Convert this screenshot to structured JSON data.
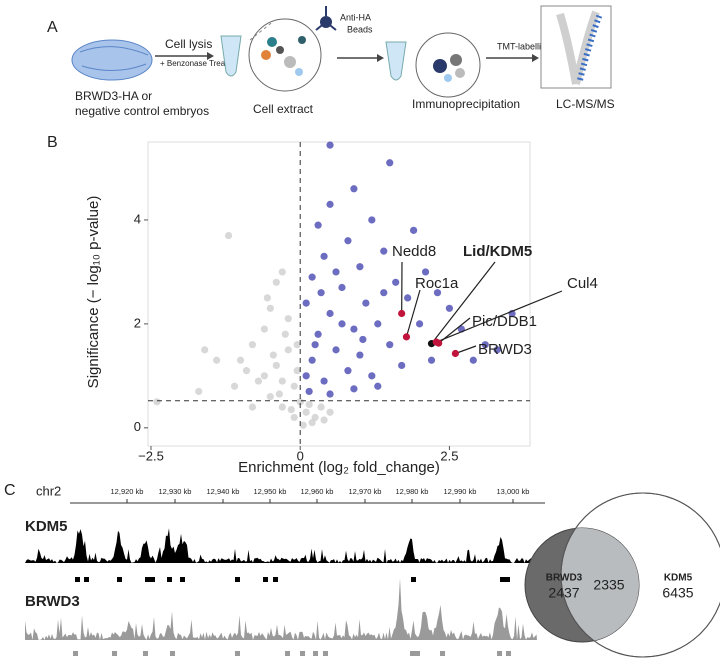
{
  "panel_a": {
    "label": "A",
    "embryo_text": [
      "BRWD3-HA or",
      "negative control embryos"
    ],
    "lysis": "Cell lysis",
    "treatment": "+ Benzonase Treat",
    "extract": "Cell extract",
    "beads": [
      "Anti-HA",
      "Beads"
    ],
    "ip": "Immunoprecipitation",
    "tmt": "TMT-labelling",
    "ms": "LC-MS/MS"
  },
  "panel_b": {
    "label": "B"
  },
  "panel_c": {
    "label": "C",
    "chromosome": "chr2",
    "coords": [
      "12,920 kb",
      "12,930 kb",
      "12,940 kb",
      "12,950 kb",
      "12,960 kb",
      "12,970 kb",
      "12,980 kb",
      "12,990 kb",
      "13,000 kb"
    ],
    "tracks": [
      {
        "name": "KDM5",
        "color": "#000000"
      },
      {
        "name": "BRWD3",
        "color": "#9a9a9a"
      }
    ]
  },
  "chart_data": [
    {
      "type": "scatter",
      "x_label": "Enrichment (log₂ fold_change)",
      "y_label": "Significance (− log₁₀ p-value)",
      "xlim": [
        -2.55,
        3.85
      ],
      "ylim": [
        -0.35,
        5.5
      ],
      "xticks": [
        {
          "value": -2.5,
          "label": "−2.5"
        },
        0,
        2.5
      ],
      "yticks": [
        0,
        2,
        4
      ],
      "grid": false,
      "thresholds": {
        "x": 0,
        "y": 0.52
      },
      "series": [
        {
          "color": "#c8c8c8",
          "x": [
            -1.2,
            -1.6,
            -1.0,
            -0.8,
            -0.6,
            -0.5,
            -0.4,
            -0.3,
            -0.2,
            -0.1,
            0.0,
            0.1,
            0.2,
            -0.1,
            -0.3,
            -0.5,
            -0.7,
            -0.9,
            -1.1,
            -0.4,
            -0.2,
            -0.6,
            -0.15,
            0.05,
            0.25,
            0.35,
            0.5,
            -1.4,
            -1.7,
            -0.25,
            -0.45,
            -0.05,
            -0.35,
            0.15,
            -2.4,
            -0.8,
            -0.55,
            -0.3,
            -0.05,
            0.4
          ],
          "values": [
            3.7,
            1.5,
            1.3,
            1.6,
            1.9,
            2.3,
            1.2,
            0.9,
            1.5,
            0.8,
            0.5,
            0.3,
            0.1,
            0.2,
            0.4,
            0.6,
            0.9,
            1.1,
            0.8,
            2.8,
            2.1,
            1.0,
            0.35,
            0.05,
            0.2,
            0.4,
            0.3,
            1.3,
            0.7,
            1.8,
            1.4,
            1.1,
            0.65,
            0.45,
            0.5,
            0.4,
            2.5,
            3.0,
            1.6,
            0.15
          ]
        },
        {
          "color": "#2e2ea6",
          "x": [
            0.5,
            1.5,
            0.9,
            0.5,
            1.2,
            0.3,
            0.8,
            1.9,
            0.4,
            1.0,
            1.4,
            0.2,
            0.7,
            1.6,
            2.1,
            0.1,
            0.5,
            1.1,
            1.8,
            2.5,
            3.55,
            0.3,
            0.9,
            1.3,
            2.0,
            2.7,
            3.1,
            0.2,
            0.6,
            1.0,
            1.5,
            2.2,
            2.9,
            3.3,
            0.1,
            0.4,
            0.8,
            1.2,
            1.7,
            0.15,
            0.5,
            0.9,
            1.3,
            0.25,
            0.7,
            1.05,
            0.35,
            0.6,
            1.4,
            2.3
          ],
          "values": [
            5.44,
            5.1,
            4.6,
            4.3,
            4.0,
            3.9,
            3.6,
            3.8,
            3.3,
            3.1,
            3.4,
            2.9,
            2.7,
            2.8,
            3.0,
            2.4,
            2.2,
            2.4,
            2.5,
            2.3,
            2.2,
            1.8,
            1.9,
            2.0,
            2.0,
            1.9,
            1.6,
            1.3,
            1.5,
            1.4,
            1.6,
            1.3,
            1.3,
            1.5,
            1.0,
            0.9,
            1.1,
            1.0,
            1.2,
            0.7,
            0.65,
            0.75,
            0.8,
            1.6,
            2.0,
            1.7,
            2.6,
            3.0,
            2.6,
            2.6
          ]
        }
      ],
      "highlights": [
        {
          "label": "Nedd8",
          "x": 1.7,
          "y": 2.2,
          "color": "#c0143c"
        },
        {
          "label": "Roc1a",
          "x": 1.78,
          "y": 1.75,
          "color": "#c0143c"
        },
        {
          "label": "Lid/KDM5",
          "x": 2.2,
          "y": 1.62,
          "color": "#111111"
        },
        {
          "label": "Cul4",
          "x": 2.28,
          "y": 1.65,
          "color": "#c0143c"
        },
        {
          "label": "Pic/DDB1",
          "x": 2.32,
          "y": 1.63,
          "color": "#c0143c"
        },
        {
          "label": "BRWD3",
          "x": 2.6,
          "y": 1.43,
          "color": "#c0143c"
        }
      ]
    },
    {
      "type": "venn",
      "sets": [
        {
          "name": "BRWD3",
          "value": 2437,
          "color": "#6a6a6a"
        },
        {
          "name": "KDM5",
          "value": 6435,
          "color": "#ffffff"
        }
      ],
      "intersection": 2335,
      "intersection_color": "#b9bcbf"
    }
  ]
}
